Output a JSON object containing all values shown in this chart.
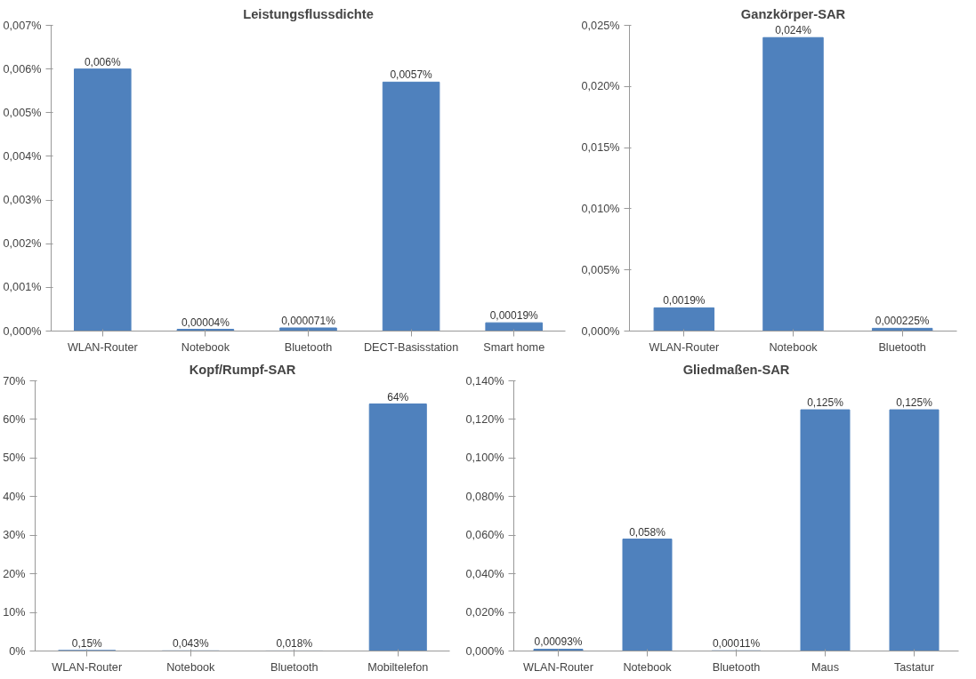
{
  "chart_data": [
    {
      "type": "bar",
      "title": "Leistungsflussdichte",
      "categories": [
        "WLAN-Router",
        "Notebook",
        "Bluetooth",
        "DECT-Basisstation",
        "Smart home"
      ],
      "values": [
        0.006,
        4e-05,
        7.1e-05,
        0.0057,
        0.00019
      ],
      "value_labels": [
        "0,006%",
        "0,00004%",
        "0,000071%",
        "0,0057%",
        "0,00019%"
      ],
      "color": "#4f81bd",
      "ylim": [
        0,
        0.007
      ],
      "yticks": [
        {
          "value": 0,
          "label": "0,000%"
        },
        {
          "value": 0.001,
          "label": "0,001%"
        },
        {
          "value": 0.002,
          "label": "0,002%"
        },
        {
          "value": 0.003,
          "label": "0,003%"
        },
        {
          "value": 0.004,
          "label": "0,004%"
        },
        {
          "value": 0.005,
          "label": "0,005%"
        },
        {
          "value": 0.006,
          "label": "0,006%"
        },
        {
          "value": 0.007,
          "label": "0,007%"
        }
      ],
      "grid": false
    },
    {
      "type": "bar",
      "title": "Ganzkörper-SAR",
      "categories": [
        "WLAN-Router",
        "Notebook",
        "Bluetooth"
      ],
      "values": [
        0.0019,
        0.024,
        0.000225
      ],
      "value_labels": [
        "0,0019%",
        "0,024%",
        "0,000225%"
      ],
      "color": "#4f81bd",
      "ylim": [
        0,
        0.025
      ],
      "yticks": [
        {
          "value": 0,
          "label": "0,000%"
        },
        {
          "value": 0.005,
          "label": "0,005%"
        },
        {
          "value": 0.01,
          "label": "0,010%"
        },
        {
          "value": 0.015,
          "label": "0,015%"
        },
        {
          "value": 0.02,
          "label": "0,020%"
        },
        {
          "value": 0.025,
          "label": "0,025%"
        }
      ],
      "grid": false
    },
    {
      "type": "bar",
      "title": "Kopf/Rumpf-SAR",
      "categories": [
        "WLAN-Router",
        "Notebook",
        "Bluetooth",
        "Mobiltelefon"
      ],
      "values": [
        0.15,
        0.043,
        0.018,
        64
      ],
      "value_labels": [
        "0,15%",
        "0,043%",
        "0,018%",
        "64%"
      ],
      "color": "#4f81bd",
      "ylim": [
        0,
        70
      ],
      "yticks": [
        {
          "value": 0,
          "label": "0%"
        },
        {
          "value": 10,
          "label": "10%"
        },
        {
          "value": 20,
          "label": "20%"
        },
        {
          "value": 30,
          "label": "30%"
        },
        {
          "value": 40,
          "label": "40%"
        },
        {
          "value": 50,
          "label": "50%"
        },
        {
          "value": 60,
          "label": "60%"
        },
        {
          "value": 70,
          "label": "70%"
        }
      ],
      "grid": false
    },
    {
      "type": "bar",
      "title": "Gliedmaßen-SAR",
      "categories": [
        "WLAN-Router",
        "Notebook",
        "Bluetooth",
        "Maus",
        "Tastatur"
      ],
      "values": [
        0.00093,
        0.058,
        0.00011,
        0.125,
        0.125
      ],
      "value_labels": [
        "0,00093%",
        "0,058%",
        "0,00011%",
        "0,125%",
        "0,125%"
      ],
      "color": "#4f81bd",
      "ylim": [
        0,
        0.14
      ],
      "yticks": [
        {
          "value": 0,
          "label": "0,000%"
        },
        {
          "value": 0.02,
          "label": "0,020%"
        },
        {
          "value": 0.04,
          "label": "0,040%"
        },
        {
          "value": 0.06,
          "label": "0,060%"
        },
        {
          "value": 0.08,
          "label": "0,080%"
        },
        {
          "value": 0.1,
          "label": "0,100%"
        },
        {
          "value": 0.12,
          "label": "0,120%"
        },
        {
          "value": 0.14,
          "label": "0,140%"
        }
      ],
      "grid": false
    }
  ]
}
